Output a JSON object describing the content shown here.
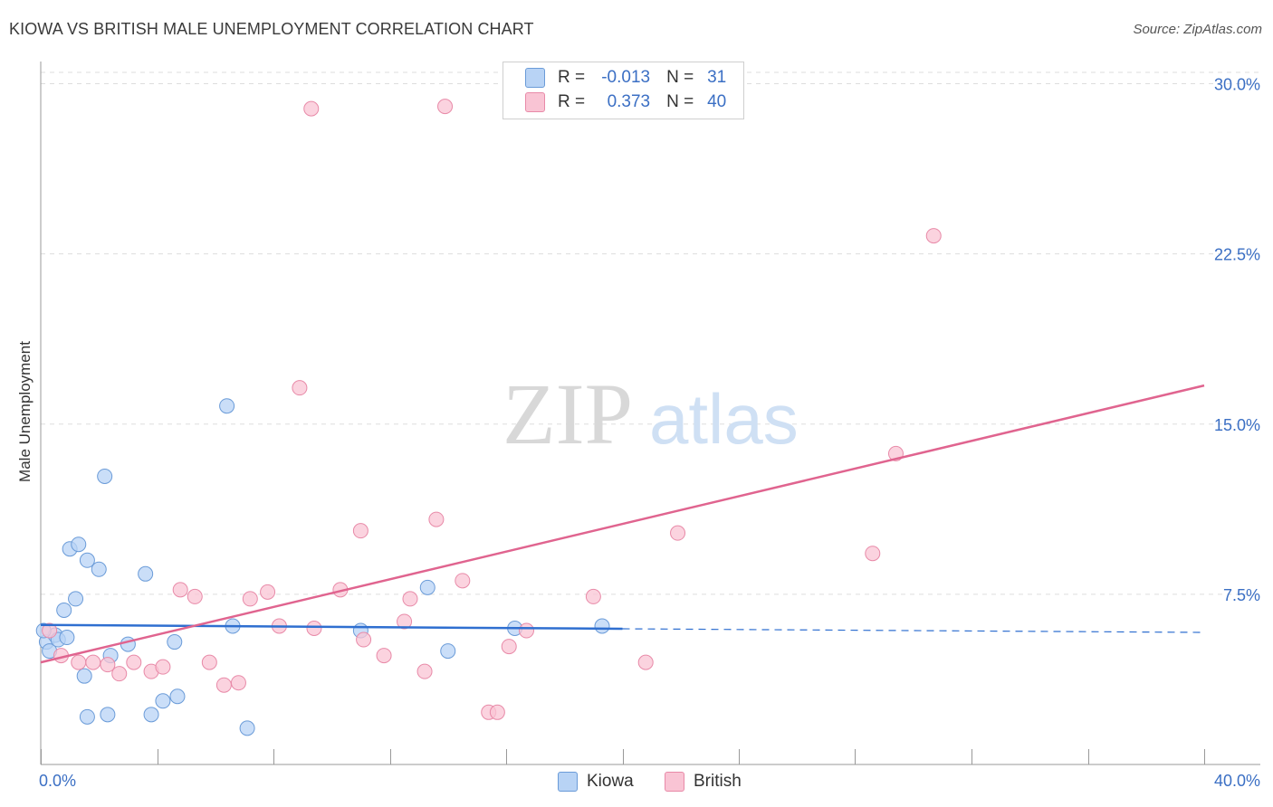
{
  "title": "KIOWA VS BRITISH MALE UNEMPLOYMENT CORRELATION CHART",
  "source": "Source: ZipAtlas.com",
  "watermark": {
    "zip": "ZIP",
    "atlas": "atlas"
  },
  "legend": {
    "kiowa": {
      "r_label": "R =",
      "r_value": "-0.013",
      "n_label": "N =",
      "n_value": "31"
    },
    "british": {
      "r_label": "R =",
      "r_value": "0.373",
      "n_label": "N =",
      "n_value": "40"
    }
  },
  "colors": {
    "kiowa_fill": "#b8d3f5",
    "kiowa_stroke": "#6a9bd8",
    "kiowa_line": "#2f6fd0",
    "british_fill": "#f9c4d4",
    "british_stroke": "#e88aa8",
    "british_line": "#e0648f",
    "axis_label": "#3b6fc4",
    "grid": "#dddddd"
  },
  "chart_data": {
    "type": "scatter",
    "title": "KIOWA VS BRITISH MALE UNEMPLOYMENT CORRELATION CHART",
    "xlabel": "",
    "ylabel": "Male Unemployment",
    "xlim": [
      0,
      40
    ],
    "ylim": [
      0,
      30.5
    ],
    "x_tick_labels": [
      "0.0%",
      "40.0%"
    ],
    "y_ticks": [
      7.5,
      15.0,
      22.5,
      30.0
    ],
    "y_tick_labels": [
      "7.5%",
      "15.0%",
      "22.5%",
      "30.0%"
    ],
    "series": [
      {
        "name": "Kiowa",
        "points": [
          [
            0.2,
            5.4
          ],
          [
            0.3,
            5.0
          ],
          [
            0.5,
            5.7
          ],
          [
            0.6,
            5.5
          ],
          [
            0.8,
            6.8
          ],
          [
            0.9,
            5.6
          ],
          [
            1.0,
            9.5
          ],
          [
            1.2,
            7.3
          ],
          [
            1.3,
            9.7
          ],
          [
            1.5,
            3.9
          ],
          [
            1.6,
            2.1
          ],
          [
            1.6,
            9.0
          ],
          [
            2.0,
            8.6
          ],
          [
            2.2,
            12.7
          ],
          [
            2.3,
            2.2
          ],
          [
            2.4,
            4.8
          ],
          [
            3.0,
            5.3
          ],
          [
            3.6,
            8.4
          ],
          [
            3.8,
            2.2
          ],
          [
            4.2,
            2.8
          ],
          [
            4.6,
            5.4
          ],
          [
            4.7,
            3.0
          ],
          [
            6.4,
            15.8
          ],
          [
            6.6,
            6.1
          ],
          [
            7.1,
            1.6
          ],
          [
            11.0,
            5.9
          ],
          [
            13.3,
            7.8
          ],
          [
            14.0,
            5.0
          ],
          [
            16.3,
            6.0
          ],
          [
            19.3,
            6.1
          ],
          [
            0.1,
            5.9
          ]
        ],
        "trend": {
          "x": [
            0,
            20,
            40
          ],
          "y": [
            6.15,
            5.98,
            5.82
          ],
          "solid_to": 20
        }
      },
      {
        "name": "British",
        "points": [
          [
            0.3,
            5.9
          ],
          [
            0.7,
            4.8
          ],
          [
            1.3,
            4.5
          ],
          [
            1.8,
            4.5
          ],
          [
            2.3,
            4.4
          ],
          [
            2.7,
            4.0
          ],
          [
            3.2,
            4.5
          ],
          [
            3.8,
            4.1
          ],
          [
            4.2,
            4.3
          ],
          [
            4.8,
            7.7
          ],
          [
            5.3,
            7.4
          ],
          [
            5.8,
            4.5
          ],
          [
            6.3,
            3.5
          ],
          [
            6.8,
            3.6
          ],
          [
            7.2,
            7.3
          ],
          [
            7.8,
            7.6
          ],
          [
            8.2,
            6.1
          ],
          [
            8.9,
            16.6
          ],
          [
            9.3,
            28.9
          ],
          [
            9.4,
            6.0
          ],
          [
            10.3,
            7.7
          ],
          [
            11.0,
            10.3
          ],
          [
            11.1,
            5.5
          ],
          [
            11.8,
            4.8
          ],
          [
            12.5,
            6.3
          ],
          [
            12.7,
            7.3
          ],
          [
            13.2,
            4.1
          ],
          [
            13.6,
            10.8
          ],
          [
            13.9,
            29.0
          ],
          [
            14.5,
            8.1
          ],
          [
            15.4,
            2.3
          ],
          [
            15.7,
            2.3
          ],
          [
            16.1,
            5.2
          ],
          [
            16.7,
            5.9
          ],
          [
            19.0,
            7.4
          ],
          [
            20.8,
            4.5
          ],
          [
            21.9,
            10.2
          ],
          [
            28.6,
            9.3
          ],
          [
            29.4,
            13.7
          ],
          [
            30.7,
            23.3
          ]
        ],
        "trend": {
          "x": [
            0,
            40
          ],
          "y": [
            4.5,
            16.7
          ]
        }
      }
    ]
  },
  "bottom_legend": {
    "kiowa": "Kiowa",
    "british": "British"
  }
}
